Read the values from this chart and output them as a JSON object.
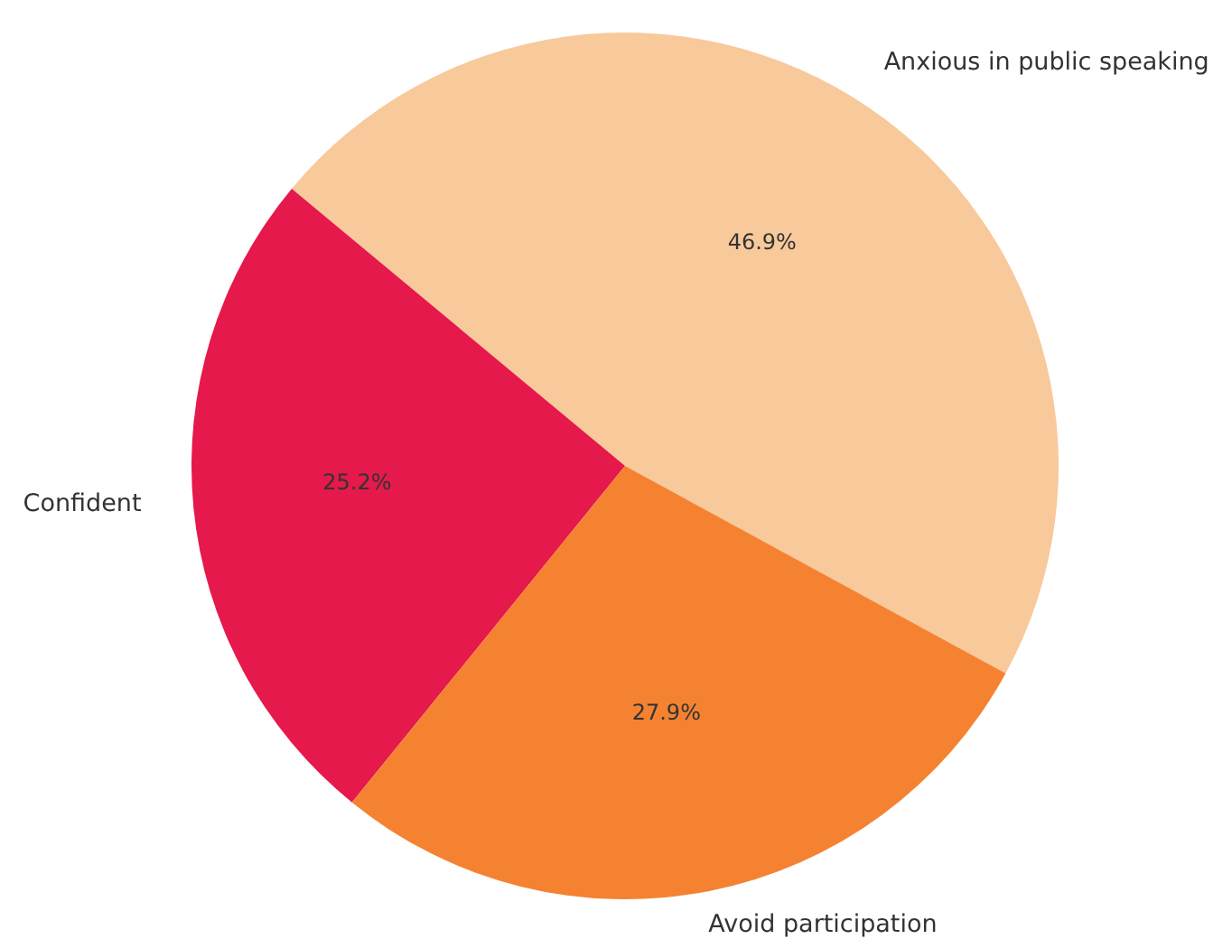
{
  "chart_data": {
    "type": "pie",
    "categories": [
      "Anxious in public speaking",
      "Confident",
      "Avoid participation"
    ],
    "values": [
      46.9,
      25.2,
      27.9
    ],
    "colors": [
      "#f8c99b",
      "#e5194b",
      "#f58231"
    ],
    "value_labels": [
      "46.9%",
      "25.2%",
      "27.9%"
    ],
    "legend": false
  }
}
